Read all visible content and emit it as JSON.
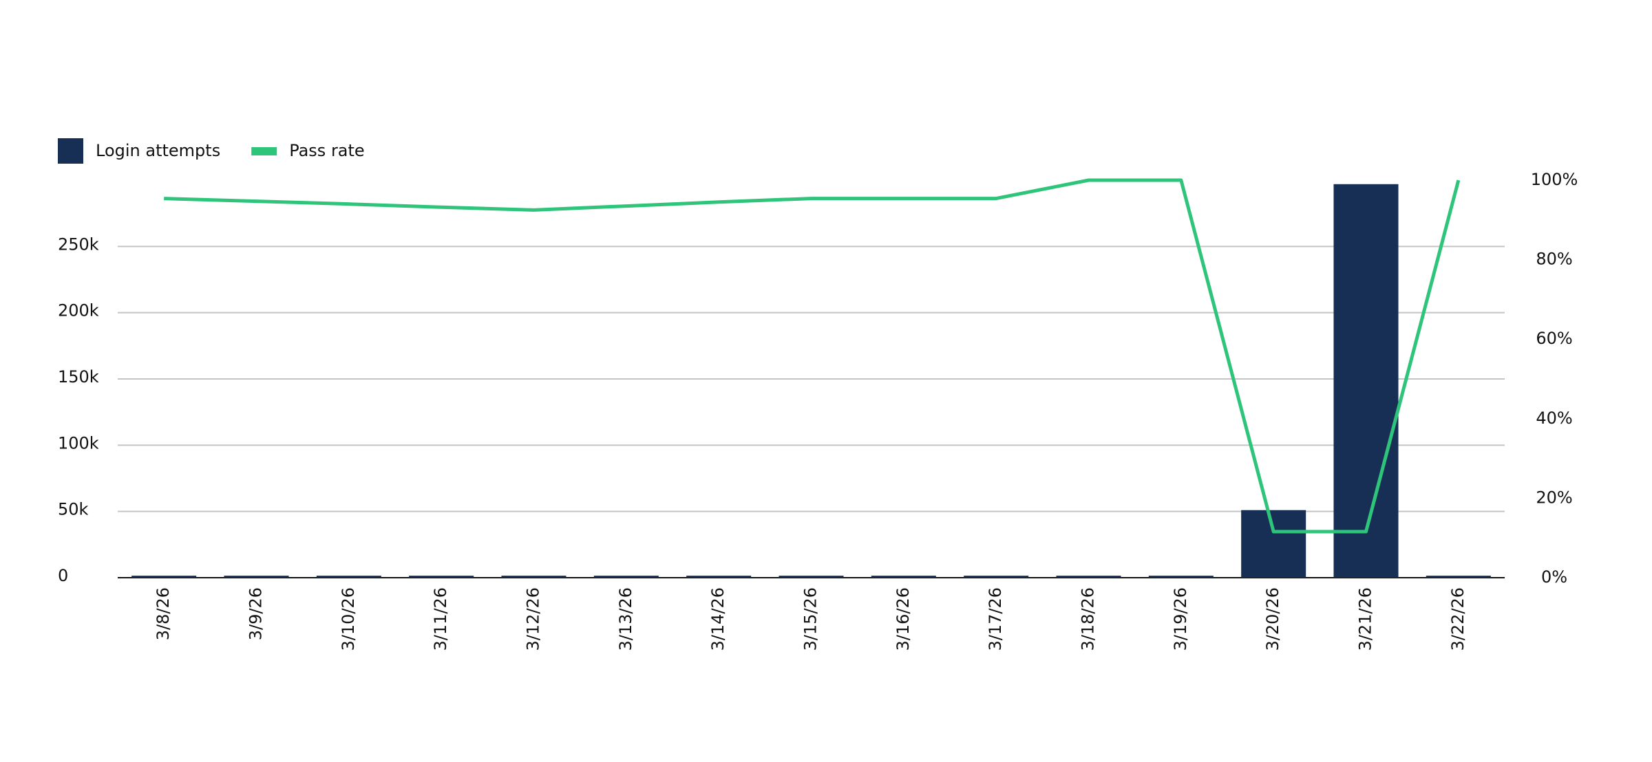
{
  "chart_data": {
    "type": "bar_line",
    "categories": [
      "3/8/26",
      "3/9/26",
      "3/10/26",
      "3/11/26",
      "3/12/26",
      "3/13/26",
      "3/14/26",
      "3/15/26",
      "3/16/26",
      "3/17/26",
      "3/18/26",
      "3/19/26",
      "3/20/26",
      "3/21/26",
      "3/22/26"
    ],
    "series": [
      {
        "name": "Login attempts",
        "type": "bar",
        "color": "#172e55",
        "values": [
          1500,
          1500,
          1500,
          1500,
          1500,
          1500,
          1500,
          1500,
          1500,
          1500,
          1500,
          1500,
          51000,
          297000,
          1500
        ]
      },
      {
        "name": "Pass rate",
        "type": "line",
        "axis": "y2",
        "color": "#2ec47a",
        "values": [
          95.4,
          94.7,
          94,
          93.2,
          92.5,
          93.5,
          94.5,
          95.4,
          95.4,
          95.4,
          100,
          100,
          11.6,
          11.6,
          100
        ]
      }
    ],
    "ylim": [
      0,
      300000
    ],
    "yticks": [
      0,
      {
        "value": 50000,
        "label": "50k"
      },
      {
        "value": 100000,
        "label": "100k"
      },
      {
        "value": 150000,
        "label": "150k"
      },
      {
        "value": 200000,
        "label": "200k"
      },
      {
        "value": 250000,
        "label": "250k"
      }
    ],
    "y2lim": [
      0,
      100
    ],
    "y2ticks": [
      {
        "value": 0,
        "label": "0%"
      },
      {
        "value": 20,
        "label": "20%"
      },
      {
        "value": 40,
        "label": "40%"
      },
      {
        "value": 60,
        "label": "60%"
      },
      {
        "value": 80,
        "label": "80%"
      },
      {
        "value": 100,
        "label": "100%"
      }
    ],
    "grid": true
  }
}
